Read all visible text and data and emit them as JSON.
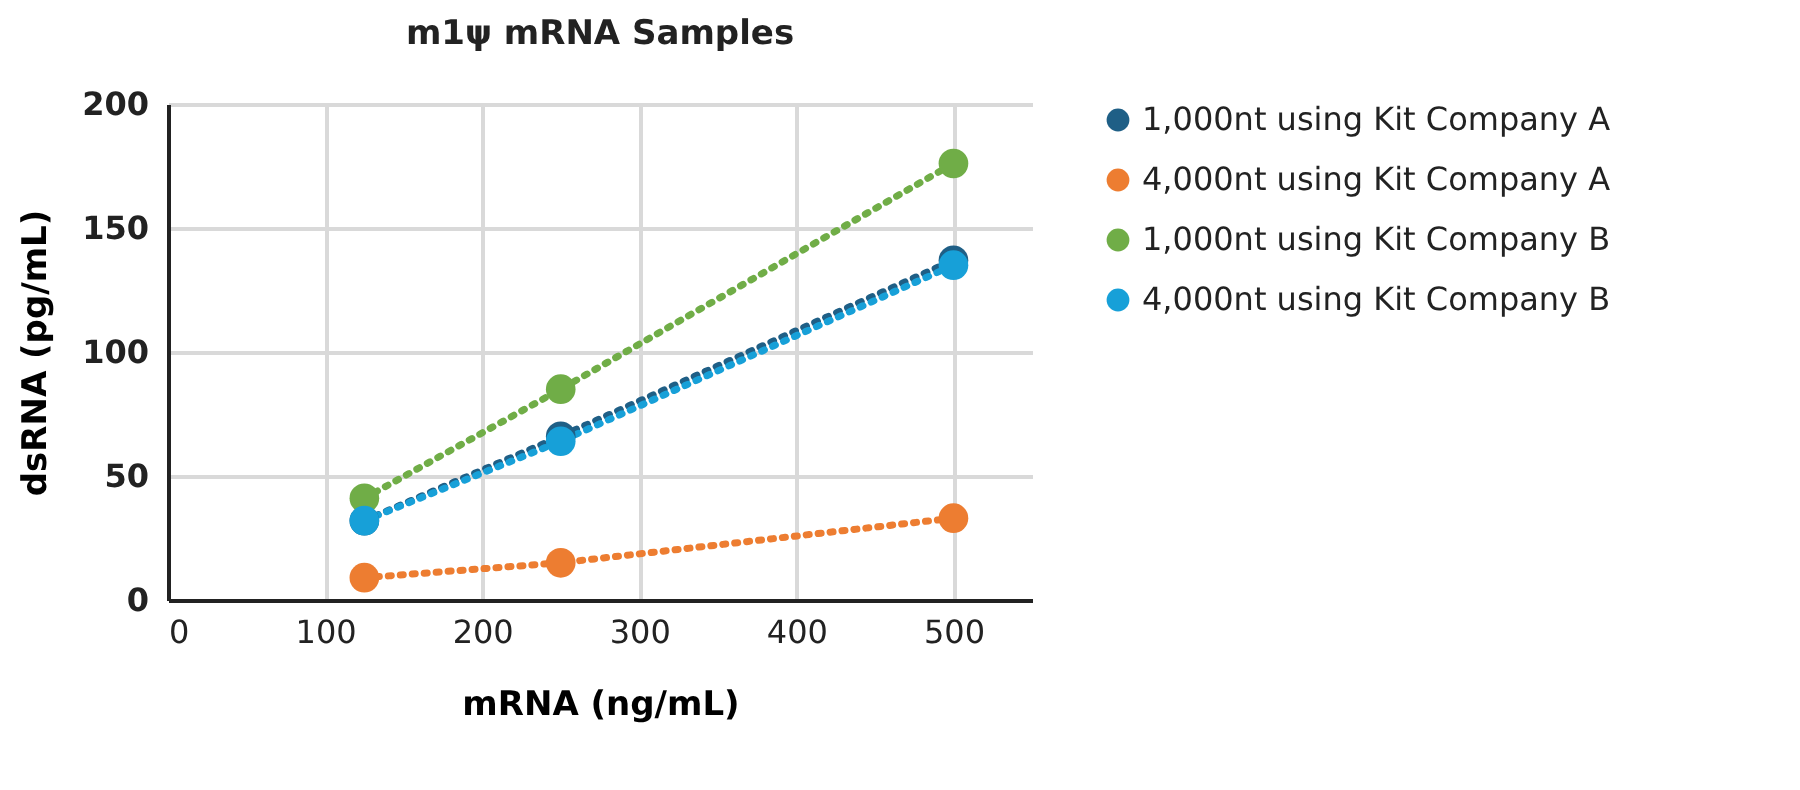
{
  "chart_data": {
    "type": "line",
    "title": "m1ψ mRNA Samples",
    "xlabel": "mRNA (ng/mL)",
    "ylabel": "dsRNA (pg/mL)",
    "x": [
      125,
      250,
      500
    ],
    "series": [
      {
        "name": "1,000nt using Kit Company A",
        "color": "#1f5f86",
        "values": [
          32,
          66,
          137
        ]
      },
      {
        "name": "4,000nt using Kit Company A",
        "color": "#ed7d31",
        "values": [
          9,
          15,
          33
        ]
      },
      {
        "name": "1,000nt using Kit Company B",
        "color": "#70ad47",
        "values": [
          41,
          85,
          176
        ]
      },
      {
        "name": "4,000nt using Kit Company B",
        "color": "#17a0d8",
        "values": [
          32,
          64,
          135
        ]
      }
    ],
    "xlim": [
      0,
      550
    ],
    "xticks": [
      0,
      100,
      200,
      300,
      400,
      500
    ],
    "ylim": [
      0,
      200
    ],
    "yticks": [
      0,
      50,
      100,
      150,
      200
    ],
    "grid": true,
    "legend": "right",
    "marker": "circle",
    "line_style": "dotted"
  }
}
